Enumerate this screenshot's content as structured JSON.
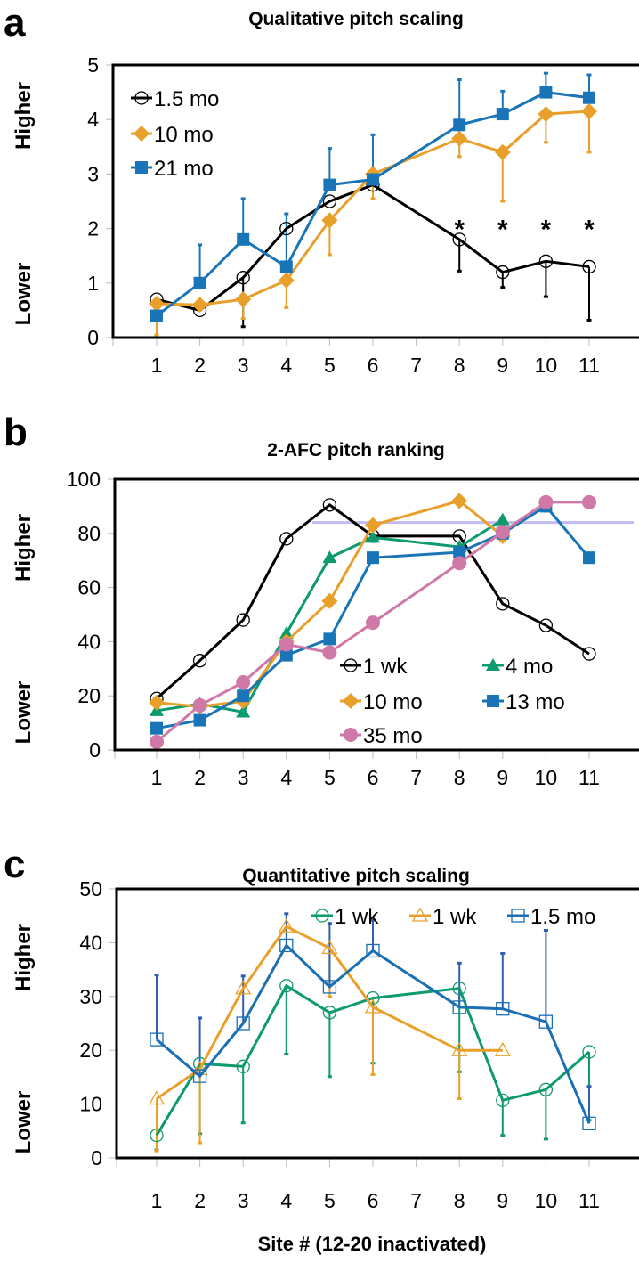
{
  "chart_data": [
    {
      "panel": "a",
      "type": "line",
      "title": "Qualitative pitch scaling",
      "ylabel_high": "Higher",
      "ylabel_low": "Lower",
      "ylim": [
        0,
        5
      ],
      "yticks": [
        0,
        1,
        2,
        3,
        4,
        5
      ],
      "categories": [
        "1",
        "2",
        "3",
        "4",
        "5",
        "6",
        "7",
        "8",
        "9",
        "10",
        "11"
      ],
      "legend_position": "top-left",
      "annotations": [
        {
          "text": "*",
          "site": "8",
          "y": 2.05
        },
        {
          "text": "*",
          "site": "9",
          "y": 2.05
        },
        {
          "text": "*",
          "site": "10",
          "y": 2.05
        },
        {
          "text": "*",
          "site": "11",
          "y": 2.05
        }
      ],
      "series": [
        {
          "name": "1.5 mo",
          "color": "#000000",
          "marker": "open-circle",
          "values": [
            0.7,
            0.5,
            1.1,
            2.0,
            2.5,
            2.8,
            null,
            1.8,
            1.2,
            1.4,
            1.3
          ],
          "err_bound": [
            null,
            null,
            0.2,
            null,
            null,
            null,
            null,
            1.22,
            0.92,
            0.75,
            0.32
          ],
          "smooth": true
        },
        {
          "name": "10 mo",
          "color": "#E8A02A",
          "marker": "diamond",
          "values": [
            0.62,
            0.6,
            0.7,
            1.05,
            2.15,
            3.0,
            null,
            3.65,
            3.4,
            4.1,
            4.15
          ],
          "err_bound": [
            0.05,
            null,
            0.35,
            0.55,
            1.52,
            2.55,
            null,
            3.32,
            2.5,
            3.58,
            3.4
          ]
        },
        {
          "name": "21 mo",
          "color": "#1A75B8",
          "marker": "square",
          "values": [
            0.4,
            1.0,
            1.8,
            1.3,
            2.8,
            2.9,
            null,
            3.9,
            4.1,
            4.5,
            4.4
          ],
          "err_bound": [
            null,
            1.7,
            2.55,
            2.27,
            3.47,
            3.72,
            null,
            4.73,
            4.52,
            4.85,
            4.82
          ]
        }
      ]
    },
    {
      "panel": "b",
      "type": "line",
      "title": "2-AFC pitch ranking",
      "ylabel_high": "Higher",
      "ylabel_low": "Lower",
      "ylim": [
        0,
        100
      ],
      "yticks": [
        0,
        20,
        40,
        60,
        80,
        100
      ],
      "categories": [
        "1",
        "2",
        "3",
        "4",
        "5",
        "6",
        "7",
        "8",
        "9",
        "10",
        "11"
      ],
      "legend_position": "bottom-right",
      "reference_line": {
        "y": 84,
        "color": "#B8B0F0"
      },
      "series": [
        {
          "name": "1 wk",
          "color": "#000000",
          "marker": "open-circle",
          "values": [
            19,
            33,
            48,
            78,
            90.5,
            79,
            null,
            79,
            54,
            46,
            35.5
          ]
        },
        {
          "name": "4 mo",
          "color": "#0D9A6E",
          "marker": "triangle",
          "values": [
            14.5,
            17,
            14,
            43,
            71,
            78.5,
            null,
            75,
            85,
            null,
            null
          ]
        },
        {
          "name": "10 mo",
          "color": "#E8A02A",
          "marker": "diamond",
          "values": [
            17.5,
            16,
            18,
            40,
            55,
            83,
            null,
            92,
            79,
            null,
            null
          ]
        },
        {
          "name": "13 mo",
          "color": "#1A75B8",
          "marker": "square",
          "values": [
            8,
            11,
            20,
            35,
            41,
            71,
            null,
            73,
            80,
            90,
            71
          ]
        },
        {
          "name": "35 mo",
          "color": "#D078A8",
          "marker": "dot",
          "values": [
            3,
            16.5,
            25,
            39,
            36,
            47,
            null,
            69,
            80.5,
            91.5,
            91.5
          ]
        }
      ]
    },
    {
      "panel": "c",
      "type": "line",
      "title": "Quantitative pitch scaling",
      "ylabel_high": "Higher",
      "ylabel_low": "Lower",
      "xlabel": "Site # (12-20 inactivated)",
      "ylim": [
        0,
        50
      ],
      "yticks": [
        0,
        10,
        20,
        30,
        40,
        50
      ],
      "categories": [
        "1",
        "2",
        "3",
        "4",
        "5",
        "6",
        "7",
        "8",
        "9",
        "10",
        "11"
      ],
      "legend_position": "top-right",
      "series": [
        {
          "name": "1 wk",
          "color": "#0D9A6E",
          "marker": "open-circle",
          "values": [
            4.2,
            17.5,
            17,
            32,
            27,
            29.7,
            null,
            31.5,
            10.7,
            12.7,
            19.7
          ],
          "err_bound": [
            1.5,
            4.5,
            6.5,
            19.3,
            15.1,
            17.6,
            null,
            16,
            4.2,
            3.5,
            7
          ]
        },
        {
          "name": "1 wk",
          "color": "#E8A02A",
          "marker": "open-triangle",
          "values": [
            11,
            16.5,
            31.5,
            43,
            39,
            28,
            null,
            20,
            20,
            null,
            null
          ],
          "err_bound": [
            1.3,
            2.8,
            null,
            null,
            30,
            15.5,
            null,
            11,
            null,
            null,
            null
          ]
        },
        {
          "name": "1.5 mo",
          "color": "#1A6FB5",
          "errcolor": "#2F5FB0",
          "marker": "open-square",
          "values": [
            22,
            15.2,
            25,
            39.5,
            31.8,
            38.5,
            null,
            28,
            27.7,
            25.3,
            6.4
          ],
          "err_bound": [
            34,
            26,
            33.8,
            45.4,
            43.6,
            44.2,
            null,
            36.2,
            38,
            42.3,
            13.3
          ]
        }
      ]
    }
  ]
}
